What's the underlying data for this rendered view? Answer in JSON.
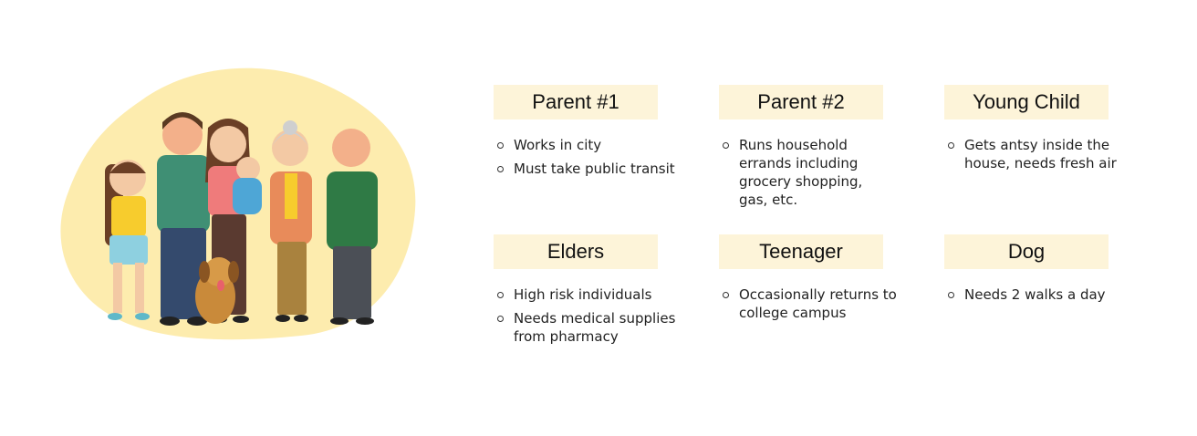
{
  "cards": [
    {
      "title": "Parent #1",
      "items": [
        "Works in city",
        "Must take public transit"
      ]
    },
    {
      "title": "Parent #2",
      "items": [
        "Runs household errands including grocery shopping, gas, etc."
      ]
    },
    {
      "title": "Young Child",
      "items": [
        "Gets antsy inside the house, needs fresh air"
      ]
    },
    {
      "title": "Elders",
      "items": [
        "High risk individuals",
        "Needs medical supplies from pharmacy"
      ]
    },
    {
      "title": "Teenager",
      "items": [
        "Occasionally returns to college campus"
      ]
    },
    {
      "title": "Dog",
      "items": [
        "Needs 2 walks a day"
      ]
    }
  ],
  "colors": {
    "card_title_bg": "#fdf4d9",
    "blob": "#fdecae"
  }
}
